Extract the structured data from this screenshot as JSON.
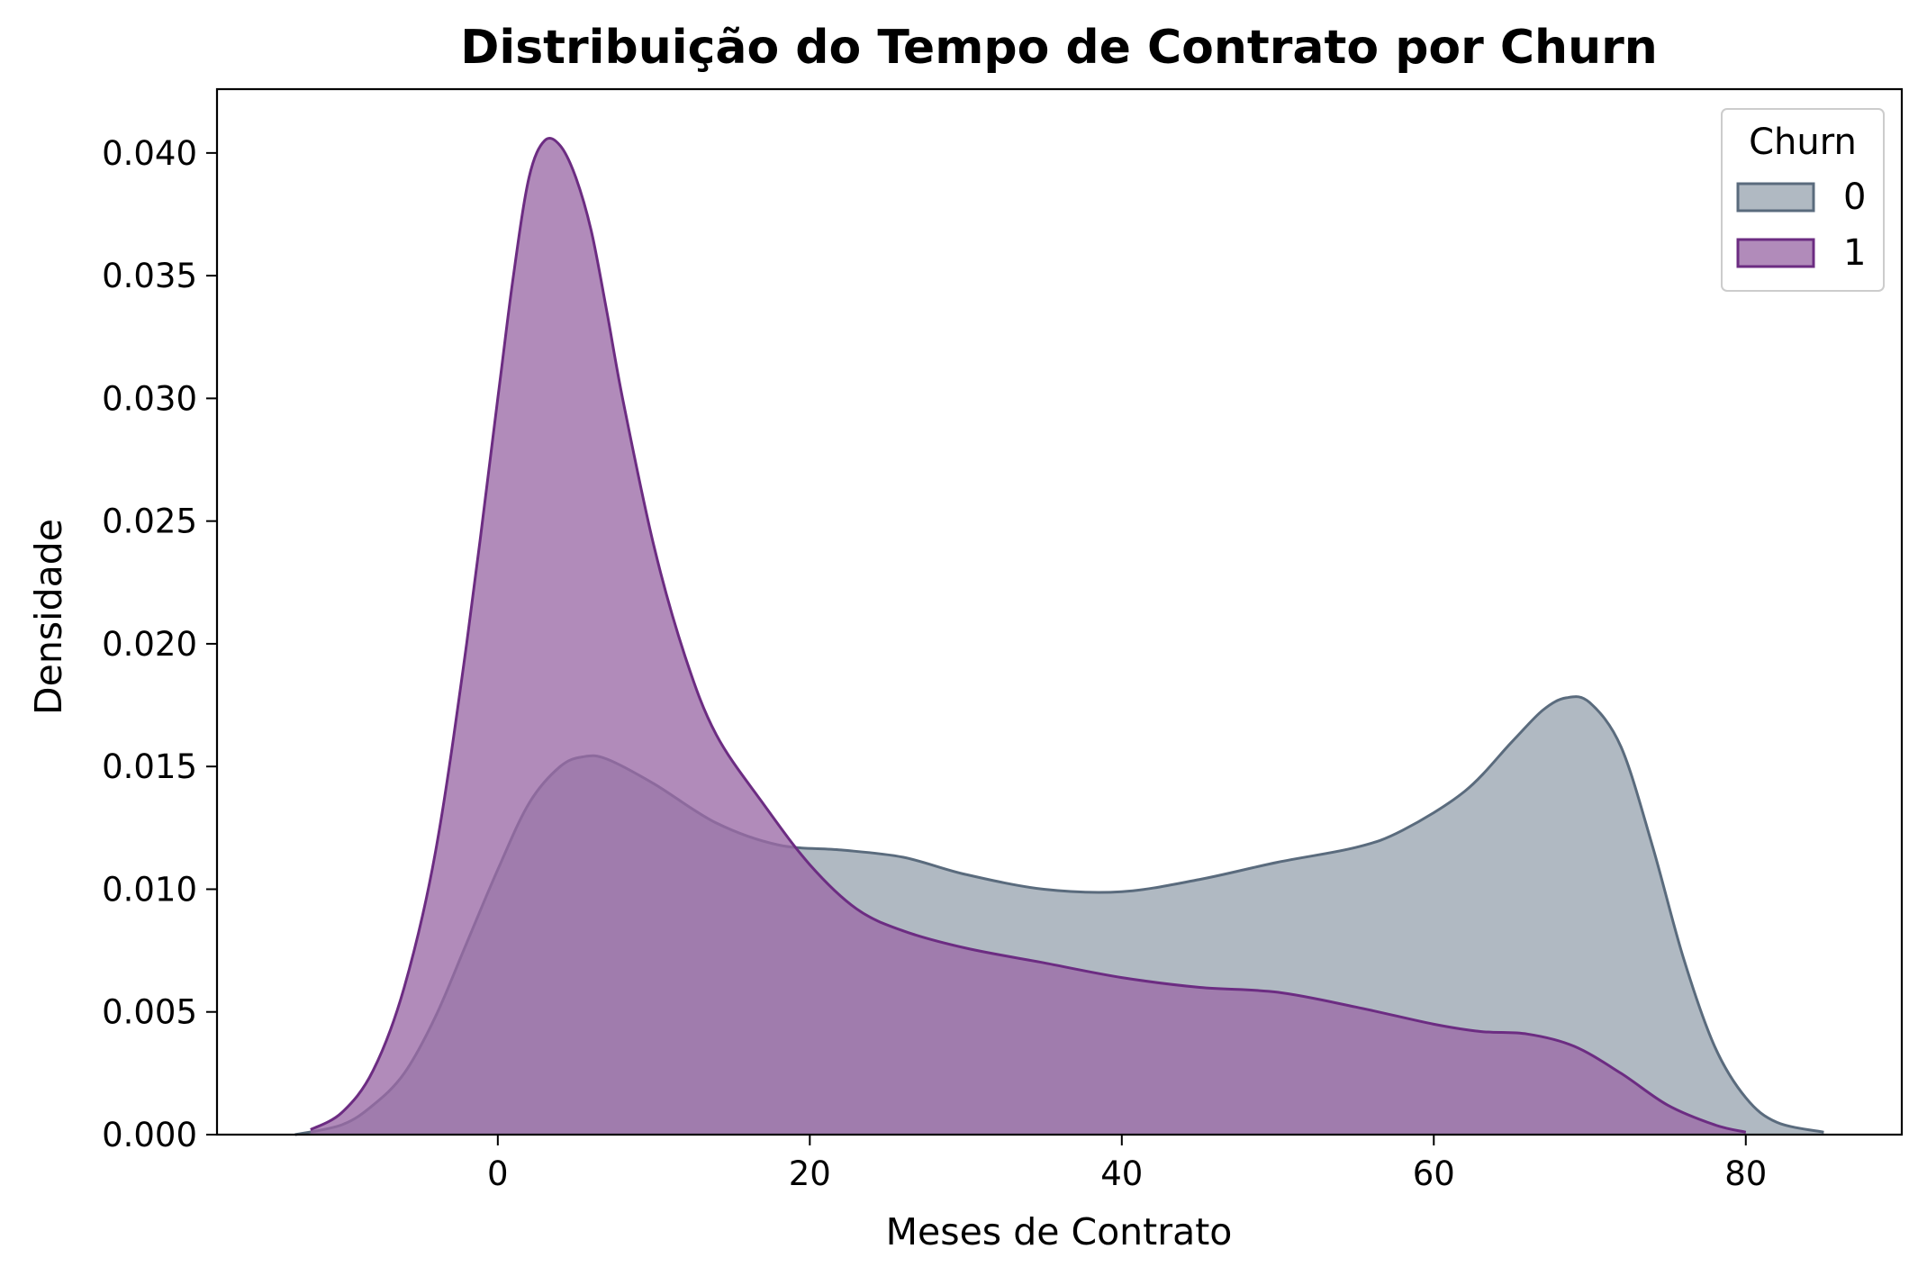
{
  "chart_data": {
    "type": "area",
    "title": "Distribuição do Tempo de Contrato por Churn",
    "xlabel": "Meses de Contrato",
    "ylabel": "Densidade",
    "xlim": [
      -18,
      90
    ],
    "ylim": [
      0,
      0.0426
    ],
    "xticks": [
      "0",
      "20",
      "40",
      "60",
      "80"
    ],
    "yticks": [
      "0.000",
      "0.005",
      "0.010",
      "0.015",
      "0.020",
      "0.025",
      "0.030",
      "0.035",
      "0.040"
    ],
    "grid": false,
    "legend": {
      "title": "Churn",
      "placement": "top-right"
    },
    "series": [
      {
        "name": "0",
        "color": "#5a6b7d",
        "fill": "#9aa5b1",
        "x": [
          -13,
          -10,
          -8,
          -6,
          -4,
          -2,
          0,
          2,
          4,
          5.5,
          7,
          10,
          14,
          18,
          22,
          26,
          30,
          35,
          40,
          45,
          50,
          55,
          58,
          62,
          65,
          67,
          68.5,
          70,
          72,
          74,
          76,
          78,
          80,
          82,
          85
        ],
        "y": [
          0.0,
          0.0004,
          0.0012,
          0.0025,
          0.0048,
          0.0078,
          0.0108,
          0.0135,
          0.015,
          0.0154,
          0.0153,
          0.0143,
          0.0127,
          0.0118,
          0.0116,
          0.0113,
          0.0106,
          0.01,
          0.0099,
          0.0104,
          0.0111,
          0.0117,
          0.0124,
          0.014,
          0.016,
          0.0173,
          0.0178,
          0.0176,
          0.0158,
          0.0118,
          0.0072,
          0.0036,
          0.0015,
          0.0005,
          0.0001
        ]
      },
      {
        "name": "1",
        "color": "#6c2c82",
        "fill": "#9b6aa6",
        "x": [
          -12,
          -10,
          -8,
          -6,
          -4,
          -2,
          0,
          1,
          2,
          3,
          4,
          5,
          6,
          7,
          8,
          10,
          12,
          14,
          17,
          20,
          23,
          26,
          30,
          35,
          40,
          45,
          50,
          55,
          60,
          63,
          66,
          69,
          72,
          75,
          78,
          80
        ],
        "y": [
          0.0002,
          0.0009,
          0.0026,
          0.006,
          0.0115,
          0.02,
          0.03,
          0.035,
          0.039,
          0.0405,
          0.0403,
          0.039,
          0.0368,
          0.0335,
          0.03,
          0.024,
          0.0195,
          0.0163,
          0.0135,
          0.011,
          0.0092,
          0.0083,
          0.0076,
          0.007,
          0.0064,
          0.006,
          0.0058,
          0.0052,
          0.0045,
          0.0042,
          0.0041,
          0.0036,
          0.0025,
          0.0012,
          0.0004,
          0.0001
        ]
      }
    ]
  }
}
